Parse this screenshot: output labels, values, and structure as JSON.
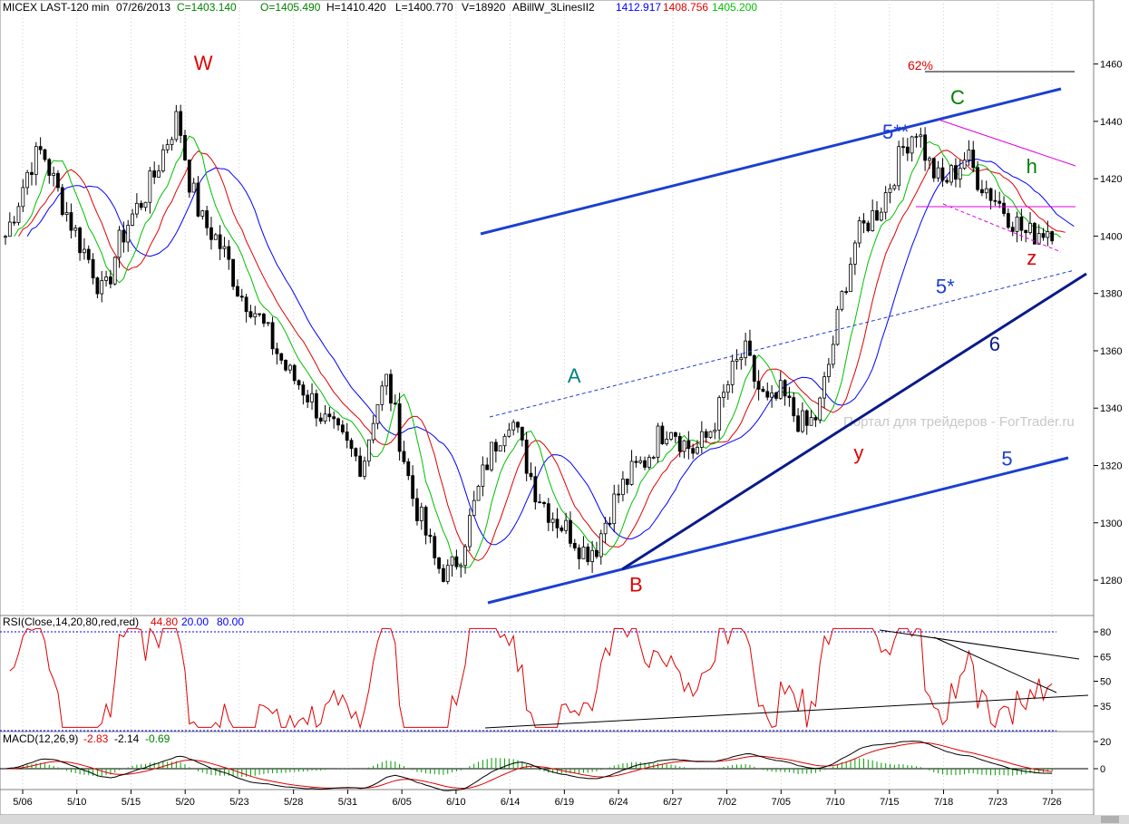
{
  "header": {
    "symbol": "MICEX LAST-120 min",
    "date": "07/26/2013",
    "close": "C=1403.140",
    "open": "O=1405.490",
    "high": "H=1410.420",
    "low": "L=1400.770",
    "volume": "V=18920",
    "indicator": "ABillW_3LinesII2",
    "ind_v1": "1412.917",
    "ind_v2": "1408.756",
    "ind_v3": "1405.200"
  },
  "rsi_header": {
    "label": "RSI(Close,14,20,80,red,red)",
    "v1": "44.80",
    "v2": "20.00",
    "v3": "80.00"
  },
  "macd_header": {
    "label": "MACD(12,26,9)",
    "v1": "-2.83",
    "v2": "-2.14",
    "v3": "-0.69"
  },
  "watermark": "Портал для трейдеров - ForTrader.ru",
  "colors": {
    "up": "#000000",
    "down": "#000000",
    "green": "#00c000",
    "red": "#e00000",
    "blue": "#0000ff",
    "magenta": "#e000e0",
    "wave_blue": "#1b3fd1",
    "wave_navy": "#0a1a8a"
  },
  "chart_data": [
    {
      "type": "candlestick",
      "name": "MICEX LAST-120 min",
      "x": [
        "5/06",
        "5/10",
        "5/15",
        "5/20",
        "5/23",
        "5/28",
        "5/31",
        "6/05",
        "6/10",
        "6/14",
        "6/19",
        "6/24",
        "6/27",
        "7/02",
        "7/05",
        "7/10",
        "7/15",
        "7/18",
        "7/23",
        "7/26"
      ],
      "y_ticks": [
        1280,
        1300,
        1320,
        1340,
        1360,
        1380,
        1400,
        1420,
        1440,
        1460
      ],
      "ylim": [
        1268,
        1476
      ],
      "close_series": [
        1400,
        1412,
        1425,
        1430,
        1418,
        1408,
        1398,
        1390,
        1378,
        1395,
        1405,
        1412,
        1420,
        1432,
        1442,
        1418,
        1405,
        1400,
        1392,
        1380,
        1376,
        1368,
        1360,
        1352,
        1348,
        1342,
        1335,
        1330,
        1325,
        1320,
        1340,
        1350,
        1330,
        1310,
        1298,
        1285,
        1282,
        1290,
        1305,
        1320,
        1330,
        1338,
        1325,
        1312,
        1305,
        1300,
        1296,
        1290,
        1292,
        1304,
        1312,
        1318,
        1322,
        1330,
        1335,
        1328,
        1325,
        1330,
        1340,
        1352,
        1360,
        1348,
        1340,
        1345,
        1338,
        1333,
        1338,
        1358,
        1380,
        1398,
        1405,
        1410,
        1420,
        1432,
        1438,
        1425,
        1418,
        1422,
        1428,
        1420,
        1415,
        1410,
        1405,
        1400,
        1402,
        1403
      ],
      "annotations": [
        {
          "text": "W",
          "x_index": 16,
          "y": 1458,
          "color": "#e00000"
        },
        {
          "text": "A",
          "x_index": 46,
          "y": 1349,
          "color": "#008080"
        },
        {
          "text": "B",
          "x_index": 51,
          "y": 1276,
          "color": "#e00000"
        },
        {
          "text": "y",
          "x_index": 69,
          "y": 1322,
          "color": "#e00000"
        },
        {
          "text": "C",
          "x_index": 77,
          "y": 1446,
          "color": "#008000"
        },
        {
          "text": "h",
          "x_index": 83,
          "y": 1422,
          "color": "#008000"
        },
        {
          "text": "z",
          "x_index": 83,
          "y": 1390,
          "color": "#e00000"
        },
        {
          "text": "62%",
          "x_index": 74,
          "y": 1458,
          "color": "#e00000"
        },
        {
          "text": "5**",
          "x_index": 72,
          "y": 1434,
          "color": "#1b3fd1"
        },
        {
          "text": "5*",
          "x_index": 76,
          "y": 1380,
          "color": "#1b3fd1"
        },
        {
          "text": "6",
          "x_index": 80,
          "y": 1360,
          "color": "#0a1a8a"
        },
        {
          "text": "5",
          "x_index": 81,
          "y": 1320,
          "color": "#1b3fd1"
        }
      ]
    },
    {
      "type": "line",
      "name": "RSI(Close,14,20,80,red,red)",
      "y_ticks": [
        35,
        50,
        65,
        80
      ],
      "ylim": [
        20,
        85
      ]
    },
    {
      "type": "line",
      "name": "MACD(12,26,9)",
      "y_ticks": [
        0,
        20
      ],
      "ylim": [
        -12,
        24
      ]
    }
  ]
}
